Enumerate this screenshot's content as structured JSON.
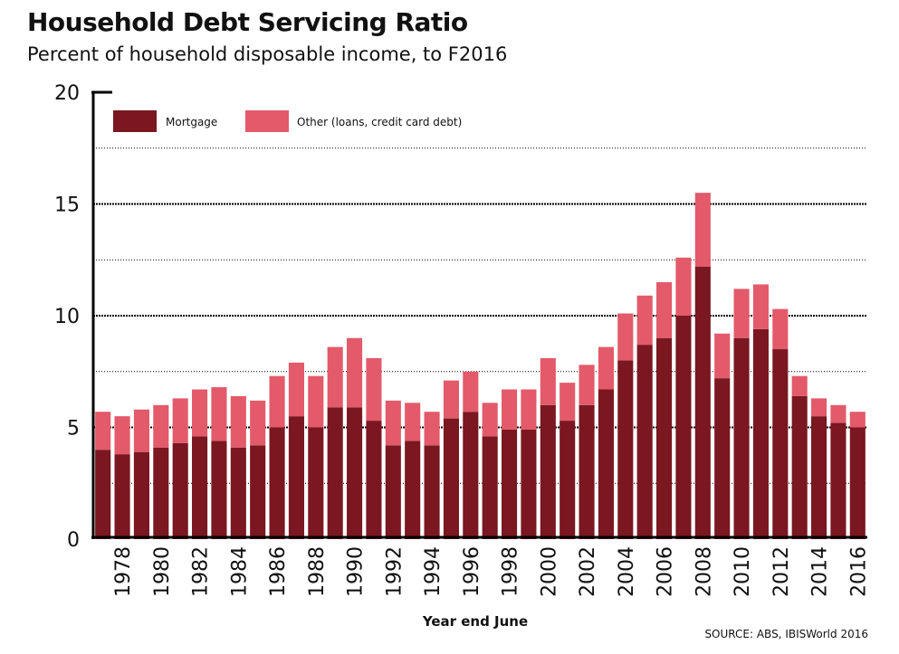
{
  "chart_data": {
    "type": "bar",
    "stacked": true,
    "title": "Household Debt Servicing Ratio",
    "subtitle": "Percent of household disposable income, to F2016",
    "xlabel": "Year end June",
    "ylabel": "",
    "ylim": [
      0,
      20
    ],
    "yticks": [
      0,
      5,
      10,
      15,
      20
    ],
    "grid": true,
    "legend_position": "top-left",
    "source": "SOURCE: ABS, IBISWorld 2016",
    "categories": [
      "1977",
      "1978",
      "1979",
      "1980",
      "1981",
      "1982",
      "1983",
      "1984",
      "1985",
      "1986",
      "1987",
      "1988",
      "1989",
      "1990",
      "1991",
      "1992",
      "1993",
      "1994",
      "1995",
      "1996",
      "1997",
      "1998",
      "1999",
      "2000",
      "2001",
      "2002",
      "2003",
      "2004",
      "2005",
      "2006",
      "2007",
      "2008",
      "2009",
      "2010",
      "2011",
      "2012",
      "2013",
      "2014",
      "2015",
      "2016"
    ],
    "tick_labels": [
      "1978",
      "1980",
      "1982",
      "1984",
      "1986",
      "1988",
      "1990",
      "1992",
      "1994",
      "1996",
      "1998",
      "2000",
      "2002",
      "2004",
      "2006",
      "2008",
      "2010",
      "2012",
      "2014",
      "2016"
    ],
    "series": [
      {
        "name": "Mortgage",
        "color": "#7a1720",
        "values": [
          4.0,
          3.8,
          3.9,
          4.1,
          4.3,
          4.6,
          4.4,
          4.1,
          4.2,
          5.0,
          5.5,
          5.0,
          5.9,
          5.9,
          5.3,
          4.2,
          4.4,
          4.2,
          5.4,
          5.7,
          4.6,
          4.9,
          4.9,
          6.0,
          5.3,
          6.0,
          6.7,
          8.0,
          8.7,
          9.0,
          10.0,
          12.2,
          7.2,
          9.0,
          9.4,
          8.5,
          6.4,
          5.5,
          5.2,
          5.0
        ]
      },
      {
        "name": "Other (loans, credit card debt)",
        "color": "#e35a6a",
        "values": [
          1.7,
          1.7,
          1.9,
          1.9,
          2.0,
          2.1,
          2.4,
          2.3,
          2.0,
          2.3,
          2.4,
          2.3,
          2.7,
          3.1,
          2.8,
          2.0,
          1.7,
          1.5,
          1.7,
          1.8,
          1.5,
          1.8,
          1.8,
          2.1,
          1.7,
          1.8,
          1.9,
          2.1,
          2.2,
          2.5,
          2.6,
          3.3,
          2.0,
          2.2,
          2.0,
          1.8,
          0.9,
          0.8,
          0.8,
          0.7
        ]
      }
    ]
  }
}
